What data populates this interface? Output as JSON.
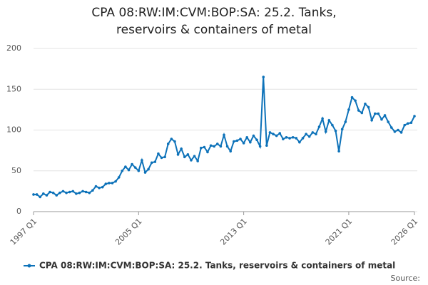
{
  "chart_data": {
    "type": "line",
    "title": "CPA 08:RW:IM:CVM:BOP:SA: 25.2. Tanks, reservoirs & containers of metal",
    "categories": [
      "1997 Q1",
      null,
      null,
      null,
      null,
      null,
      null,
      null,
      null,
      null,
      null,
      null,
      null,
      null,
      null,
      null,
      null,
      null,
      null,
      null,
      null,
      null,
      null,
      null,
      null,
      null,
      null,
      null,
      null,
      null,
      null,
      null,
      "2005 Q1",
      null,
      null,
      null,
      null,
      null,
      null,
      null,
      null,
      null,
      null,
      null,
      null,
      null,
      null,
      null,
      null,
      null,
      null,
      null,
      null,
      null,
      null,
      null,
      null,
      null,
      null,
      null,
      null,
      null,
      null,
      null,
      "2013 Q1",
      null,
      null,
      null,
      null,
      null,
      null,
      null,
      null,
      null,
      null,
      null,
      null,
      null,
      null,
      null,
      null,
      null,
      null,
      null,
      null,
      null,
      null,
      null,
      null,
      null,
      null,
      null,
      null,
      null,
      null,
      null,
      "2021 Q1",
      null,
      null,
      null,
      null,
      null,
      null,
      null,
      null,
      null,
      null,
      null,
      null,
      null,
      null,
      null,
      null,
      null,
      null,
      null,
      "2026 Q1"
    ],
    "series": [
      {
        "name": "CPA 08:RW:IM:CVM:BOP:SA: 25.2. Tanks, reservoirs & containers of metal",
        "color": "#0d72b9",
        "values": [
          21,
          21,
          18,
          22,
          20,
          24,
          23,
          20,
          23,
          25,
          23,
          24,
          25,
          22,
          23,
          25,
          24,
          23,
          26,
          31,
          29,
          30,
          34,
          35,
          35,
          37,
          42,
          50,
          55,
          51,
          58,
          54,
          50,
          63,
          48,
          52,
          60,
          61,
          71,
          66,
          67,
          83,
          89,
          86,
          70,
          77,
          67,
          70,
          63,
          68,
          62,
          78,
          79,
          73,
          81,
          80,
          83,
          80,
          94,
          80,
          74,
          86,
          87,
          89,
          84,
          91,
          85,
          93,
          88,
          80,
          165,
          81,
          97,
          95,
          93,
          96,
          89,
          91,
          90,
          91,
          90,
          85,
          90,
          95,
          92,
          97,
          95,
          104,
          114,
          98,
          112,
          106,
          99,
          74,
          101,
          110,
          125,
          140,
          136,
          124,
          121,
          132,
          128,
          112,
          120,
          120,
          113,
          118,
          110,
          103,
          98,
          100,
          97,
          106,
          108,
          109,
          117
        ]
      }
    ],
    "ylim": [
      0,
      200
    ],
    "yticks": [
      0,
      50,
      100,
      150,
      200
    ],
    "grid": true,
    "source": "Source:"
  }
}
